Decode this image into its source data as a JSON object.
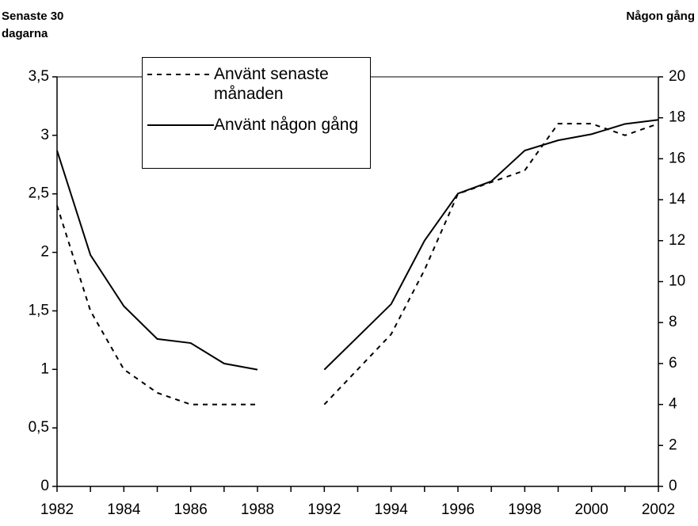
{
  "chart_data": {
    "type": "line",
    "y_label": "Senaste 30 dagarna",
    "y2_label": "Någon gång",
    "categories": [
      "1982",
      "1983",
      "1984",
      "1985",
      "1986",
      "1987",
      "1988",
      null,
      "1992",
      "1993",
      "1994",
      "1995",
      "1996",
      "1997",
      "1998",
      "1999",
      "2000",
      "2001",
      "2002"
    ],
    "xtick_labels_every": 2,
    "series": [
      {
        "name": "Använt senaste månaden",
        "color": "#000000",
        "line_style": "dashed",
        "values": [
          2.4,
          1.5,
          1.0,
          0.8,
          0.7,
          0.7,
          0.7,
          null,
          0.7,
          1.0,
          1.3,
          1.85,
          2.5,
          2.6,
          2.7,
          3.1,
          3.1,
          3.0,
          3.1
        ]
      },
      {
        "name": "Använt någon gång",
        "color": "#000000",
        "line_style": "solid",
        "axis": "y2",
        "values": [
          16.4,
          11.3,
          8.8,
          7.2,
          7.0,
          6.0,
          5.7,
          null,
          5.7,
          7.3,
          8.9,
          12.0,
          14.3,
          14.9,
          16.4,
          16.9,
          17.2,
          17.7,
          17.9
        ]
      }
    ],
    "ylim": [
      0,
      3.5
    ],
    "yticks": [
      0,
      {
        "value": 0.5,
        "label": "0,5"
      },
      1,
      {
        "value": 1.5,
        "label": "1,5"
      },
      2,
      {
        "value": 2.5,
        "label": "2,5"
      },
      3,
      {
        "value": 3.5,
        "label": "3,5"
      }
    ],
    "y2lim": [
      0,
      20
    ],
    "y2ticks": [
      0,
      2,
      4,
      6,
      8,
      10,
      12,
      14,
      16,
      18,
      20
    ]
  }
}
